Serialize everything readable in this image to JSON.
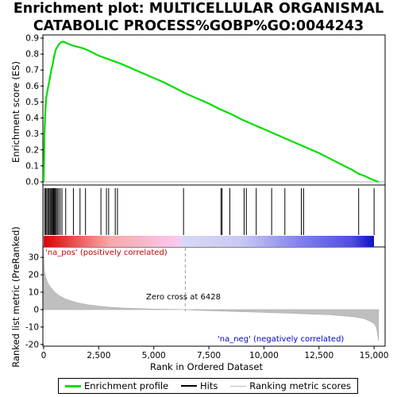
{
  "title_line1": "Enrichment plot: MULTICELLULAR ORGANISMAL",
  "title_line2": "CATABOLIC PROCESS%GOBP%GO:0044243",
  "legend": {
    "enrichment_profile": "Enrichment profile",
    "hits": "Hits",
    "ranking_metric": "Ranking metric scores"
  },
  "colors": {
    "enrichment_line": "#00dd00",
    "hits": "#000000",
    "metric_fill": "#bfbfbf",
    "pos_label": "#cc0000",
    "neg_label": "#0000cc"
  },
  "chart_data": [
    {
      "type": "line",
      "ylabel": "Enrichment score (ES)",
      "xlim": [
        0,
        15500
      ],
      "ylim": [
        -0.02,
        0.92
      ],
      "yticks": [
        "0.0",
        "0.1",
        "0.2",
        "0.3",
        "0.4",
        "0.5",
        "0.6",
        "0.7",
        "0.8",
        "0.9"
      ],
      "grid": false,
      "series": [
        {
          "name": "Enrichment profile",
          "x": [
            0,
            40,
            80,
            120,
            160,
            200,
            240,
            280,
            320,
            360,
            400,
            440,
            480,
            520,
            560,
            600,
            660,
            720,
            800,
            900,
            1000,
            1200,
            1400,
            1700,
            2000,
            2500,
            3000,
            3500,
            4000,
            4500,
            5000,
            5500,
            6000,
            6500,
            7000,
            7500,
            8000,
            8500,
            9000,
            9500,
            10000,
            10500,
            11000,
            11500,
            12000,
            12500,
            13000,
            13500,
            14000,
            14300,
            14600,
            14900,
            15100,
            15200
          ],
          "y": [
            0.0,
            0.32,
            0.45,
            0.53,
            0.56,
            0.59,
            0.62,
            0.65,
            0.68,
            0.71,
            0.73,
            0.76,
            0.79,
            0.81,
            0.83,
            0.84,
            0.855,
            0.865,
            0.875,
            0.878,
            0.872,
            0.86,
            0.85,
            0.84,
            0.825,
            0.79,
            0.765,
            0.74,
            0.71,
            0.68,
            0.65,
            0.62,
            0.585,
            0.55,
            0.52,
            0.49,
            0.455,
            0.425,
            0.39,
            0.36,
            0.33,
            0.3,
            0.27,
            0.24,
            0.21,
            0.18,
            0.145,
            0.11,
            0.075,
            0.05,
            0.035,
            0.015,
            0.005,
            0.0
          ]
        }
      ]
    },
    {
      "type": "scatter",
      "name": "Hits",
      "x": [
        40,
        90,
        140,
        190,
        240,
        290,
        330,
        370,
        410,
        450,
        490,
        530,
        570,
        620,
        680,
        750,
        830,
        1000,
        1350,
        1650,
        1900,
        2600,
        2850,
        2950,
        3250,
        3350,
        6350,
        8050,
        8100,
        8450,
        9100,
        9200,
        9650,
        10350,
        10950,
        11700,
        11800,
        14300,
        15000
      ]
    },
    {
      "type": "area",
      "title": "",
      "xlabel": "Rank in Ordered Dataset",
      "ylabel": "Ranked list metric (PreRanked)",
      "xlim": [
        0,
        15500
      ],
      "ylim": [
        -21,
        36
      ],
      "xticks": [
        "0",
        "2,500",
        "5,000",
        "7,500",
        "10,000",
        "12,500",
        "15,000"
      ],
      "yticks": [
        "30",
        "20",
        "10",
        "0",
        "-10",
        "-20"
      ],
      "x": [
        0,
        20,
        50,
        100,
        200,
        300,
        400,
        500,
        700,
        1000,
        1500,
        2000,
        2500,
        3000,
        3500,
        4000,
        5000,
        6000,
        6428,
        7000,
        8000,
        9000,
        10000,
        11000,
        12000,
        13000,
        13500,
        14000,
        14500,
        14800,
        15000,
        15100,
        15150,
        15200
      ],
      "values": [
        35,
        24,
        21,
        18,
        15,
        13,
        11.5,
        10,
        8,
        6,
        4,
        2.8,
        2,
        1.4,
        1,
        0.7,
        0.3,
        0.1,
        0,
        -0.4,
        -0.8,
        -1.2,
        -1.6,
        -2,
        -2.5,
        -3,
        -3.5,
        -4,
        -5,
        -6.5,
        -8,
        -10,
        -13,
        -18
      ],
      "annotations": [
        "Zero cross at 6428",
        "'na_pos' (positively correlated)",
        "'na_neg' (negatively correlated)"
      ]
    }
  ]
}
